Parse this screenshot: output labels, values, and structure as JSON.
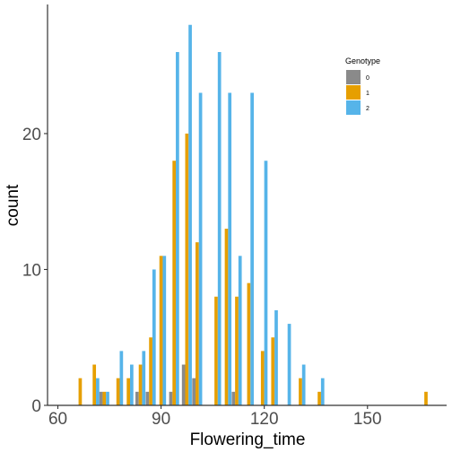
{
  "chart_data": {
    "type": "bar",
    "title": "",
    "xlabel": "Flowering_time",
    "ylabel": "count",
    "xlim": [
      57,
      173
    ],
    "ylim": [
      0,
      29.5
    ],
    "x_ticks": [
      60,
      90,
      120,
      150
    ],
    "y_ticks": [
      0,
      10,
      20
    ],
    "bin_width": 2.9,
    "grid": false,
    "legend": {
      "title": "Genotype",
      "position": "top-right",
      "entries": [
        {
          "label": "0",
          "color": "#8a8a8a"
        },
        {
          "label": "1",
          "color": "#e69f00"
        },
        {
          "label": "2",
          "color": "#56b4e9"
        }
      ]
    },
    "bins": [
      {
        "x": 66.5,
        "counts": [
          0,
          2,
          0
        ]
      },
      {
        "x": 70.6,
        "counts": [
          0,
          3,
          2
        ]
      },
      {
        "x": 73.5,
        "counts": [
          1,
          1,
          1
        ]
      },
      {
        "x": 77.5,
        "counts": [
          0,
          2,
          4
        ]
      },
      {
        "x": 80.5,
        "counts": [
          0,
          2,
          3
        ]
      },
      {
        "x": 84,
        "counts": [
          1,
          3,
          4
        ]
      },
      {
        "x": 87,
        "counts": [
          1,
          5,
          10
        ]
      },
      {
        "x": 90,
        "counts": [
          0,
          11,
          11
        ]
      },
      {
        "x": 93.8,
        "counts": [
          1,
          18,
          26
        ]
      },
      {
        "x": 97.5,
        "counts": [
          3,
          20,
          28
        ]
      },
      {
        "x": 100.5,
        "counts": [
          2,
          12,
          23
        ]
      },
      {
        "x": 106,
        "counts": [
          0,
          8,
          26
        ]
      },
      {
        "x": 109,
        "counts": [
          0,
          13,
          23
        ]
      },
      {
        "x": 112,
        "counts": [
          1,
          8,
          11
        ]
      },
      {
        "x": 115.5,
        "counts": [
          0,
          9,
          23
        ]
      },
      {
        "x": 119.5,
        "counts": [
          0,
          4,
          18
        ]
      },
      {
        "x": 122.5,
        "counts": [
          0,
          5,
          7
        ]
      },
      {
        "x": 126.3,
        "counts": [
          0,
          0,
          6
        ]
      },
      {
        "x": 130.5,
        "counts": [
          0,
          2,
          3
        ]
      },
      {
        "x": 136,
        "counts": [
          0,
          1,
          2
        ]
      },
      {
        "x": 167,
        "counts": [
          0,
          1,
          0
        ]
      }
    ]
  }
}
